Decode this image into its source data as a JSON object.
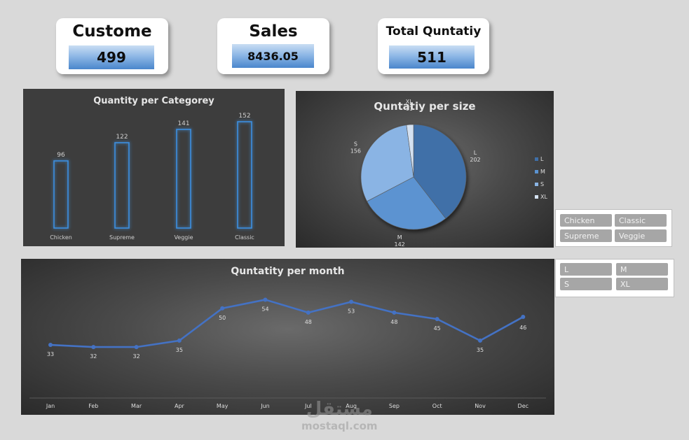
{
  "kpis": {
    "customers": {
      "title": "Custome",
      "value": "499"
    },
    "sales": {
      "title": "Sales",
      "value": "8436.05"
    },
    "quantity": {
      "title": "Total Quntatiy",
      "value": "511"
    }
  },
  "colors": {
    "accent_blue": "#4a86cc",
    "bar_glow": "#3d8fe0",
    "line_blue": "#4472c4",
    "slicer_button": "#a6a6a6"
  },
  "chart_data": [
    {
      "type": "bar",
      "title": "Quantity per Categorey",
      "categories": [
        "Chicken",
        "Supreme",
        "Veggie",
        "Classic"
      ],
      "values": [
        96,
        122,
        141,
        152
      ],
      "ylim": [
        0,
        160
      ],
      "grid": false,
      "legend": "none"
    },
    {
      "type": "pie",
      "title": "Quntatiy per size",
      "labels": [
        "L",
        "M",
        "S",
        "XL"
      ],
      "values": [
        202,
        142,
        156,
        11
      ],
      "colors": [
        "#3f6fa8",
        "#5b93d1",
        "#8ab4e4",
        "#d4e1f1"
      ],
      "legend": "right"
    },
    {
      "type": "line",
      "title": "Quntatity per month",
      "categories": [
        "Jan",
        "Feb",
        "Mar",
        "Apr",
        "May",
        "Jun",
        "Jul",
        "Aug",
        "Sep",
        "Oct",
        "Nov",
        "Dec"
      ],
      "values": [
        33,
        32,
        32,
        35,
        50,
        54,
        48,
        53,
        48,
        45,
        35,
        46
      ],
      "ylim": [
        20,
        60
      ],
      "grid": false,
      "legend": "none"
    }
  ],
  "slicers": {
    "category": {
      "items": [
        "Chicken",
        "Classic",
        "Supreme",
        "Veggie"
      ]
    },
    "size": {
      "items": [
        "L",
        "M",
        "S",
        "XL"
      ]
    }
  },
  "watermark": {
    "arabic": "مستقل",
    "latin": "mostaql.com"
  }
}
